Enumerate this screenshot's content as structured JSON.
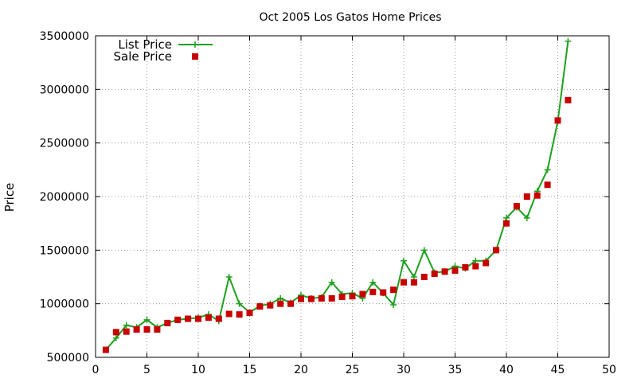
{
  "chart_data": {
    "type": "line",
    "title": "Oct 2005 Los Gatos Home Prices",
    "xlabel": "",
    "ylabel": "Price",
    "xlim": [
      0,
      50
    ],
    "ylim": [
      500000,
      3500000
    ],
    "xticks": [
      0,
      5,
      10,
      15,
      20,
      25,
      30,
      35,
      40,
      45,
      50
    ],
    "yticks": [
      500000,
      1000000,
      1500000,
      2000000,
      2500000,
      3000000,
      3500000
    ],
    "grid": true,
    "legend_position": "top-left",
    "series": [
      {
        "name": "List Price",
        "style": "line+cross",
        "color": "#1ea01e",
        "x": [
          1,
          2,
          3,
          4,
          5,
          6,
          7,
          8,
          9,
          10,
          11,
          12,
          13,
          14,
          15,
          16,
          17,
          18,
          19,
          20,
          21,
          22,
          23,
          24,
          25,
          26,
          27,
          28,
          29,
          30,
          31,
          32,
          33,
          34,
          35,
          36,
          37,
          38,
          39,
          40,
          41,
          42,
          43,
          44,
          45,
          46
        ],
        "y": [
          570000,
          680000,
          800000,
          780000,
          850000,
          780000,
          820000,
          850000,
          860000,
          870000,
          900000,
          840000,
          1250000,
          1000000,
          920000,
          980000,
          1000000,
          1050000,
          1010000,
          1080000,
          1050000,
          1060000,
          1200000,
          1090000,
          1100000,
          1050000,
          1200000,
          1100000,
          990000,
          1400000,
          1250000,
          1500000,
          1290000,
          1300000,
          1350000,
          1330000,
          1400000,
          1400000,
          1500000,
          1800000,
          1900000,
          1800000,
          2050000,
          2250000,
          2700000,
          3450000
        ]
      },
      {
        "name": "Sale Price",
        "style": "square-markers",
        "color": "#c80000",
        "x": [
          1,
          2,
          3,
          4,
          5,
          6,
          7,
          8,
          9,
          10,
          11,
          12,
          13,
          14,
          15,
          16,
          17,
          18,
          19,
          20,
          21,
          22,
          23,
          24,
          25,
          26,
          27,
          28,
          29,
          30,
          31,
          32,
          33,
          34,
          35,
          36,
          37,
          38,
          39,
          40,
          41,
          42,
          43,
          44,
          45,
          46
        ],
        "y": [
          570000,
          735000,
          740000,
          760000,
          760000,
          760000,
          820000,
          850000,
          860000,
          860000,
          870000,
          860000,
          905000,
          900000,
          915000,
          975000,
          985000,
          1000000,
          1000000,
          1045000,
          1045000,
          1050000,
          1050000,
          1065000,
          1070000,
          1090000,
          1110000,
          1105000,
          1130000,
          1200000,
          1200000,
          1250000,
          1280000,
          1300000,
          1310000,
          1340000,
          1350000,
          1380000,
          1500000,
          1750000,
          1910000,
          2000000,
          2010000,
          2110000,
          2710000,
          2900000
        ]
      }
    ]
  }
}
